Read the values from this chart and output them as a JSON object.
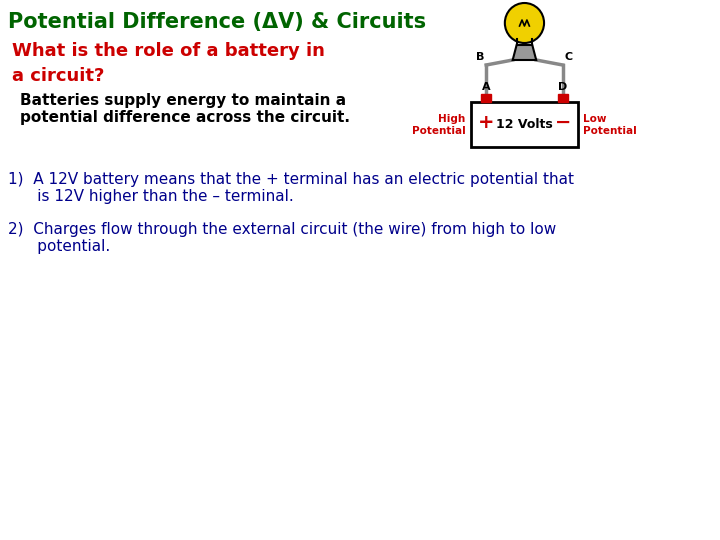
{
  "title": "Potential Difference (ΔV) & Circuits",
  "title_color": "#006400",
  "title_fontsize": 15,
  "subtitle": "What is the role of a battery in\na circuit?",
  "subtitle_color": "#cc0000",
  "subtitle_fontsize": 13,
  "body1_line1": "Batteries supply energy to maintain a",
  "body1_line2": "potential difference across the circuit.",
  "body1_color": "#000000",
  "body1_fontsize": 11,
  "point1_line1": "1)  A 12V battery means that the + terminal has an electric potential that",
  "point1_line2": "      is 12V higher than the – terminal.",
  "point1_color": "#00008b",
  "point1_fontsize": 11,
  "point2_line1": "2)  Charges flow through the external circuit (the wire) from high to low",
  "point2_line2": "      potential.",
  "point2_color": "#00008b",
  "point2_fontsize": 11,
  "bg_color": "#ffffff",
  "wire_color": "#888888",
  "battery_label": "12 Volts",
  "high_label1": "High",
  "high_label2": "Potential",
  "low_label1": "Low",
  "low_label2": "Potential",
  "terminal_color": "#cc0000",
  "label_A": "A",
  "label_B": "B",
  "label_C": "C",
  "label_D": "D"
}
